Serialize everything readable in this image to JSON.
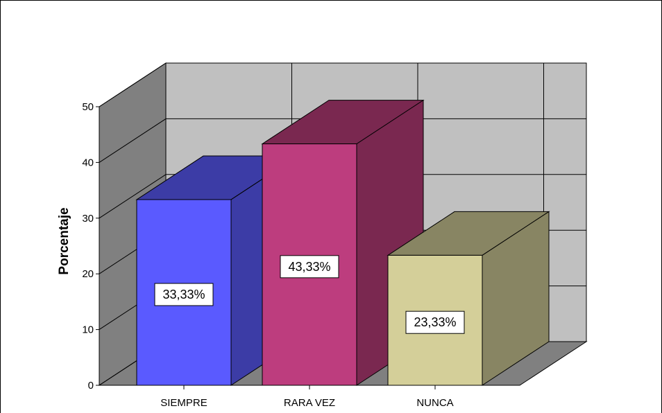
{
  "chart_data": {
    "type": "bar",
    "categories": [
      "SIEMPRE",
      "RARA VEZ",
      "NUNCA"
    ],
    "values": [
      33.33,
      43.33,
      23.33
    ],
    "data_labels": [
      "33,33%",
      "43,33%",
      "23,33%"
    ],
    "ylabel": "Porcentaje",
    "xlabel": "",
    "title": "",
    "ylim": [
      0,
      50
    ],
    "yticks": [
      0,
      10,
      20,
      30,
      40,
      50
    ],
    "grid": true,
    "three_d": true,
    "colors": {
      "bars": [
        {
          "front": "#5a5aff",
          "side": "#3c3ca6",
          "top": "#3c3ca6"
        },
        {
          "front": "#bd3d7e",
          "side": "#7a2850",
          "top": "#7a2850"
        },
        {
          "front": "#d4cf99",
          "side": "#888563",
          "top": "#888563"
        }
      ],
      "wall": "#c0c0c0",
      "side_wall": "#808080",
      "floor": "#808080",
      "grid": "#000000"
    }
  }
}
